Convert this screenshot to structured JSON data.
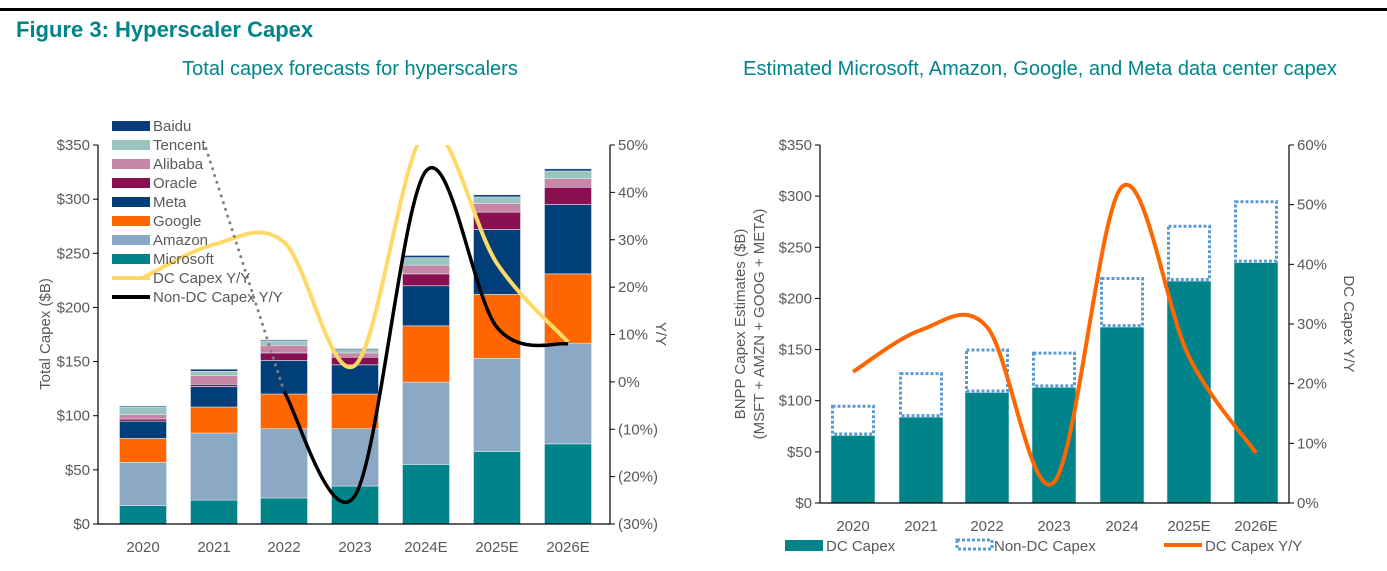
{
  "figure_title": "Figure 3: Hyperscaler Capex",
  "chart_data": [
    {
      "type": "bar",
      "stacked": true,
      "title": "Total capex forecasts for hyperscalers",
      "ylabel": "Total Capex ($B)",
      "y2label": "Y/Y",
      "categories": [
        "2020",
        "2021",
        "2022",
        "2023",
        "2024E",
        "2025E",
        "2026E"
      ],
      "ylim": [
        0,
        350
      ],
      "yticks": [
        "$0",
        "$50",
        "$100",
        "$150",
        "$200",
        "$250",
        "$300",
        "$350"
      ],
      "y2lim": [
        -30,
        50
      ],
      "y2ticks": [
        "(30%)",
        "(20%)",
        "(10%)",
        "0%",
        "10%",
        "20%",
        "30%",
        "40%",
        "50%"
      ],
      "grid": false,
      "legend_position": "top-left",
      "series": [
        {
          "name": "Microsoft",
          "color": "#00848a",
          "values": [
            17,
            22,
            24,
            35,
            55,
            67,
            74
          ]
        },
        {
          "name": "Amazon",
          "color": "#8ba9c4",
          "values": [
            40,
            62,
            64,
            53,
            76,
            86,
            93
          ]
        },
        {
          "name": "Google",
          "color": "#ff6600",
          "values": [
            22,
            24,
            32,
            32,
            52,
            59,
            64
          ]
        },
        {
          "name": "Meta",
          "color": "#003f7a",
          "values": [
            16,
            19,
            31,
            27,
            37,
            60,
            64
          ]
        },
        {
          "name": "Oracle",
          "color": "#8a0f50",
          "values": [
            2,
            2,
            7,
            7,
            11,
            16,
            16
          ]
        },
        {
          "name": "Alibaba",
          "color": "#c785a8",
          "values": [
            4,
            8,
            7,
            4,
            8,
            8,
            8
          ]
        },
        {
          "name": "Tencent",
          "color": "#99c4c0",
          "values": [
            7,
            4,
            4,
            3,
            7,
            6,
            7
          ]
        },
        {
          "name": "Baidu",
          "color": "#0a3c7a",
          "values": [
            1,
            2,
            1,
            1,
            2,
            2,
            2
          ]
        }
      ],
      "lines": [
        {
          "name": "DC Capex Y/Y",
          "color": "#ffd966",
          "axis": "right",
          "values": [
            22,
            29,
            29.5,
            3.5,
            53,
            25,
            8.4
          ]
        },
        {
          "name": "Non-DC Capex Y/Y",
          "color": "#000000",
          "dotted_color": "#808080",
          "axis": "right",
          "values": [
            null,
            48,
            -2,
            -24,
            44.5,
            11.5,
            8
          ]
        }
      ]
    },
    {
      "type": "bar",
      "stacked": true,
      "title": "Estimated Microsoft, Amazon, Google, and Meta data center capex",
      "ylabel": [
        "BNPP Capex Estimates ($B)",
        "(MSFT + AMZN + GOOG + META)"
      ],
      "y2label": "DC Capex Y/Y",
      "categories": [
        "2020",
        "2021",
        "2022",
        "2023",
        "2024",
        "2025E",
        "2026E"
      ],
      "ylim": [
        0,
        350
      ],
      "yticks": [
        "$0",
        "$50",
        "$100",
        "$150",
        "$200",
        "$250",
        "$300",
        "$350"
      ],
      "y2lim": [
        0,
        60
      ],
      "y2ticks": [
        "0%",
        "10%",
        "20%",
        "30%",
        "40%",
        "50%",
        "60%"
      ],
      "grid": false,
      "legend_position": "bottom",
      "series": [
        {
          "name": "DC Capex",
          "color": "#00848a",
          "values": [
            66,
            84,
            108,
            113,
            172,
            217,
            235
          ]
        },
        {
          "name": "Non-DC Capex",
          "color": "#5b9bd5",
          "style": "dotted-outline",
          "values": [
            30,
            44,
            43,
            35,
            49,
            55,
            61
          ]
        }
      ],
      "lines": [
        {
          "name": "DC Capex Y/Y",
          "color": "#ff6600",
          "axis": "right",
          "values": [
            22,
            29,
            29.5,
            3.5,
            53,
            24.5,
            8.4
          ]
        }
      ]
    }
  ]
}
